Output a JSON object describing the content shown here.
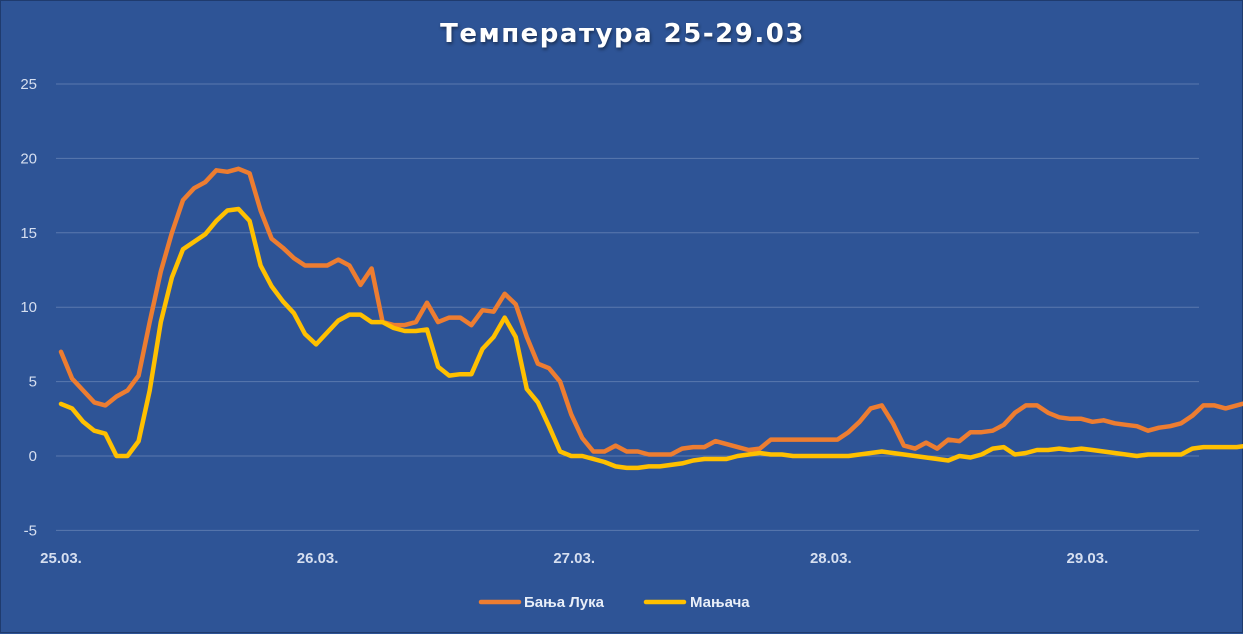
{
  "chart_data": {
    "type": "line",
    "title": "Температура 25-29.03",
    "xlabel": "",
    "ylabel": "",
    "ylim": [
      -5,
      25
    ],
    "yticks": [
      "25",
      "20",
      "15",
      "10",
      "5",
      "0",
      "-5"
    ],
    "ytick_values": [
      25,
      20,
      15,
      10,
      5,
      0,
      -5
    ],
    "xticks": [
      "25.03.",
      "26.03.",
      "27.03.",
      "28.03.",
      "29.03."
    ],
    "grid": true,
    "legend": "bottom-center",
    "x_unit": "hours",
    "x_range_hours": [
      0,
      111
    ],
    "series": [
      {
        "name": "Бања Лука",
        "color": "#ed7d31",
        "values": [
          7.0,
          5.2,
          4.4,
          3.6,
          3.4,
          4.0,
          4.4,
          5.4,
          9.0,
          12.4,
          15.0,
          17.2,
          18.0,
          18.4,
          19.2,
          19.1,
          19.3,
          19.0,
          16.5,
          14.6,
          14.0,
          13.3,
          12.8,
          12.8,
          12.8,
          13.2,
          12.8,
          11.5,
          12.6,
          9.0,
          8.8,
          8.8,
          9.0,
          10.3,
          9.0,
          9.3,
          9.3,
          8.8,
          9.8,
          9.7,
          10.9,
          10.2,
          8.0,
          6.2,
          5.9,
          5.0,
          2.8,
          1.2,
          0.3,
          0.3,
          0.7,
          0.3,
          0.3,
          0.1,
          0.1,
          0.1,
          0.5,
          0.6,
          0.6,
          1.0,
          0.8,
          0.6,
          0.4,
          0.5,
          1.1,
          1.1,
          1.1,
          1.1,
          1.1,
          1.1,
          1.1,
          1.6,
          2.3,
          3.2,
          3.4,
          2.2,
          0.7,
          0.5,
          0.9,
          0.5,
          1.1,
          1.0,
          1.6,
          1.6,
          1.7,
          2.1,
          2.9,
          3.4,
          3.4,
          2.9,
          2.6,
          2.5,
          2.5,
          2.3,
          2.4,
          2.2,
          2.1,
          2.0,
          1.7,
          1.9,
          2.0,
          2.2,
          2.7,
          3.4,
          3.4,
          3.2,
          3.4,
          3.6
        ]
      },
      {
        "name": "Мањача",
        "color": "#ffc000",
        "values": [
          3.5,
          3.2,
          2.3,
          1.7,
          1.5,
          0.0,
          0.0,
          1.0,
          4.4,
          9.0,
          12.0,
          13.9,
          14.4,
          14.9,
          15.8,
          16.5,
          16.6,
          15.8,
          12.8,
          11.4,
          10.4,
          9.6,
          8.2,
          7.5,
          8.3,
          9.1,
          9.5,
          9.5,
          9.0,
          9.0,
          8.6,
          8.4,
          8.4,
          8.5,
          6.0,
          5.4,
          5.5,
          5.5,
          7.2,
          8.0,
          9.3,
          8.0,
          4.5,
          3.6,
          2.0,
          0.3,
          0.0,
          0.0,
          -0.2,
          -0.4,
          -0.7,
          -0.8,
          -0.8,
          -0.7,
          -0.7,
          -0.6,
          -0.5,
          -0.3,
          -0.2,
          -0.2,
          -0.2,
          0.0,
          0.1,
          0.2,
          0.1,
          0.1,
          0.0,
          0.0,
          0.0,
          0.0,
          0.0,
          0.0,
          0.1,
          0.2,
          0.3,
          0.2,
          0.1,
          0.0,
          -0.1,
          -0.2,
          -0.3,
          0.0,
          -0.1,
          0.1,
          0.5,
          0.6,
          0.1,
          0.2,
          0.4,
          0.4,
          0.5,
          0.4,
          0.5,
          0.4,
          0.3,
          0.2,
          0.1,
          0.0,
          0.1,
          0.1,
          0.1,
          0.1,
          0.5,
          0.6,
          0.6,
          0.6,
          0.6,
          0.7
        ]
      }
    ]
  }
}
